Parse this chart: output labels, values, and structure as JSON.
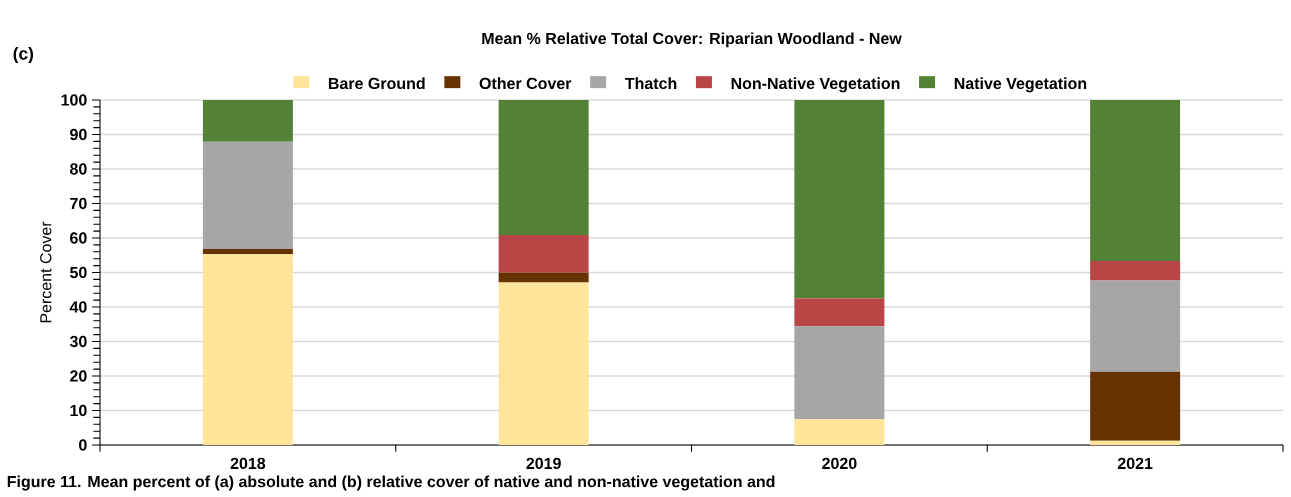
{
  "chart_data": {
    "type": "bar",
    "title": "Mean % Relative Total Cover: Riparian Woodland - New",
    "ylabel": "Percent Cover",
    "categories": [
      "2018",
      "2019",
      "2020",
      "2021"
    ],
    "series": [
      {
        "name": "Bare Ground",
        "color": "#ffe599",
        "values": [
          55.3,
          47.1,
          7.5,
          1.2
        ]
      },
      {
        "name": "Other Cover",
        "color": "#663300",
        "values": [
          1.5,
          2.8,
          0,
          20.0
        ]
      },
      {
        "name": "Thatch",
        "color": "#a6a6a6",
        "values": [
          31.1,
          0,
          26.9,
          26.5
        ]
      },
      {
        "name": "Non-Native Vegetation",
        "color": "#b94646",
        "values": [
          0,
          11.0,
          8.1,
          5.6
        ]
      },
      {
        "name": "Native Vegetation",
        "color": "#538135",
        "values": [
          12.1,
          39.1,
          57.5,
          46.7
        ]
      }
    ],
    "stacked": true,
    "ylim": [
      0,
      100
    ],
    "yticks": [
      0,
      10,
      20,
      30,
      40,
      50,
      60,
      70,
      80,
      90,
      100
    ],
    "grid": "y",
    "legend": "top",
    "annotations": [
      "(c)",
      "Figure 11. Mean percent of (a) absolute and (b) relative cover of native and non-native vegetation and"
    ]
  }
}
